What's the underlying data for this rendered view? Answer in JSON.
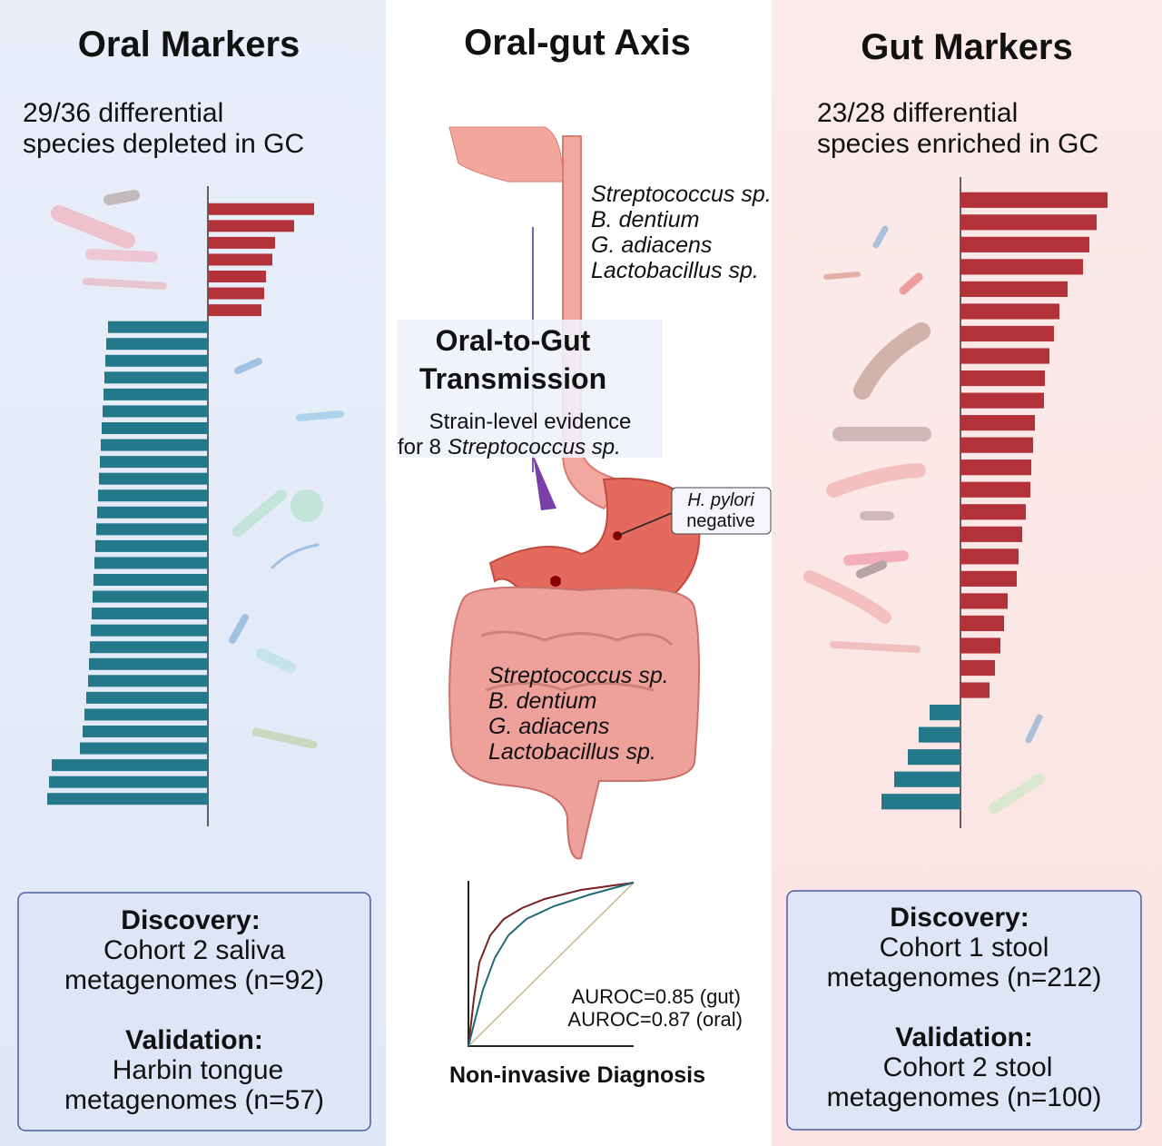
{
  "oral": {
    "title": "Oral Markers",
    "summary": [
      "29/36 differential",
      "species depleted in GC"
    ],
    "bars": [
      117,
      95,
      74,
      71,
      64,
      62,
      59,
      -110,
      -112,
      -113,
      -114,
      -115,
      -116,
      -117,
      -118,
      -119,
      -120,
      -121,
      -122,
      -123,
      -124,
      -125,
      -126,
      -127,
      -128,
      -129,
      -130,
      -131,
      -132,
      -134,
      -136,
      -138,
      -141,
      -172,
      -175,
      -177
    ],
    "discovery": {
      "heading": "Discovery:",
      "lines": [
        "Cohort 2 saliva",
        "metagenomes (n=92)"
      ]
    },
    "validation": {
      "heading": "Validation:",
      "lines": [
        "Harbin tongue",
        "metagenomes (n=57)"
      ]
    }
  },
  "axis": {
    "title": "Oral-gut Axis",
    "oral_species": [
      "Streptococcus sp.",
      "B. dentium",
      "G. adiacens",
      "Lactobacillus sp."
    ],
    "transmission": {
      "title": [
        "Oral-to-Gut",
        "Transmission"
      ],
      "evidence": [
        "Strain-level evidence",
        "for 8",
        "Streptococcus sp."
      ]
    },
    "hpylori": [
      "H. pylori",
      "negative"
    ],
    "gut_species": [
      "Streptococcus sp.",
      "B. dentium",
      "G. adiacens",
      "Lactobacillus sp."
    ],
    "roc": {
      "labels": [
        "AUROC=0.85 (gut)",
        "AUROC=0.87 (oral)"
      ],
      "caption": "Non-invasive Diagnosis"
    }
  },
  "gut": {
    "title": "Gut Markers",
    "summary": [
      "23/28 differential",
      "species enriched in GC"
    ],
    "bars": [
      162,
      150,
      142,
      135,
      118,
      109,
      103,
      98,
      93,
      92,
      82,
      80,
      78,
      77,
      72,
      68,
      64,
      62,
      52,
      48,
      44,
      38,
      32,
      -34,
      -46,
      -58,
      -73,
      -87
    ],
    "discovery": {
      "heading": "Discovery:",
      "lines": [
        "Cohort 1 stool",
        "metagenomes (n=212)"
      ]
    },
    "validation": {
      "heading": "Validation:",
      "lines": [
        "Cohort 2 stool",
        "metagenomes (n=100)"
      ]
    }
  }
}
